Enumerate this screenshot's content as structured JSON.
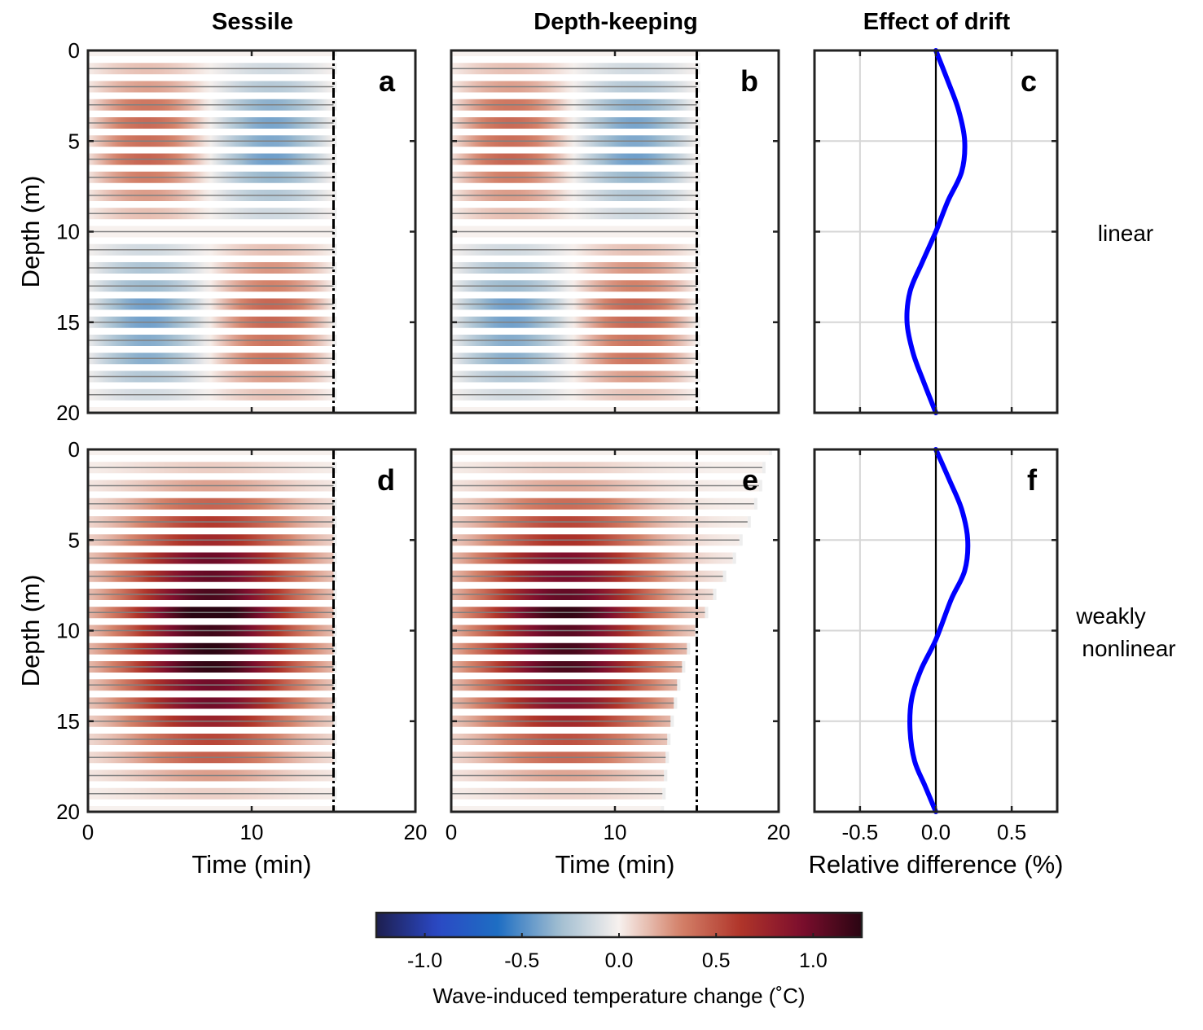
{
  "column_titles": [
    "Sessile",
    "Depth-keeping",
    "Effect of drift"
  ],
  "row_labels": {
    "top": "linear",
    "bottom": [
      "weakly",
      "nonlinear"
    ]
  },
  "colors": {
    "diff_curve": "#0000ff",
    "mooring_line": "#808080",
    "cmap_stops": [
      "#1d1f4f",
      "#2b48c4",
      "#1e6ec3",
      "#9fbcd0",
      "#f7f1ee",
      "#d4826a",
      "#b0352a",
      "#7d0e2d",
      "#2a0512"
    ]
  },
  "colorbar": {
    "label": "Wave-induced temperature change (˚C)",
    "range": [
      -1.25,
      1.25
    ],
    "ticks": [
      -1.0,
      -0.5,
      0.0,
      0.5,
      1.0
    ],
    "tick_labels": [
      "-1.0",
      "-0.5",
      "0.0",
      "0.5",
      "1.0"
    ]
  },
  "chart_data": [
    {
      "panel": "a",
      "type": "heatmap",
      "title": "Sessile",
      "xlabel": "",
      "ylabel": "Depth (m)",
      "xlim": [
        0,
        20
      ],
      "ylim": [
        20,
        0
      ],
      "xticks": [
        0,
        10,
        20
      ],
      "yticks": [
        0,
        5,
        10,
        15,
        20
      ],
      "sensor_depths": [
        1,
        2,
        3,
        4,
        5,
        6,
        7,
        8,
        9,
        10,
        11,
        12,
        13,
        14,
        15,
        16,
        17,
        18,
        19,
        20
      ],
      "record_end_min": 15,
      "dashed_vline_min": 15,
      "amplitude_peak_C": 0.45,
      "field": "positive anomaly ~0–7 min, negative ~8–15 min, maximal near 10 m depth"
    },
    {
      "panel": "b",
      "type": "heatmap",
      "title": "Depth-keeping",
      "xlabel": "",
      "ylabel": "",
      "xlim": [
        0,
        20
      ],
      "ylim": [
        20,
        0
      ],
      "xticks": [
        0,
        10,
        20
      ],
      "yticks": [
        0,
        5,
        10,
        15,
        20
      ],
      "sensor_depths": [
        1,
        2,
        3,
        4,
        5,
        6,
        7,
        8,
        9,
        10,
        11,
        12,
        13,
        14,
        15,
        16,
        17,
        18,
        19,
        20
      ],
      "record_end_min": 15,
      "dashed_vline_min": 15,
      "amplitude_peak_C": 0.45,
      "field": "same structure as panel a"
    },
    {
      "panel": "c",
      "type": "line",
      "title": "Effect of drift",
      "xlabel": "",
      "ylabel": "",
      "xlim": [
        -0.8,
        0.8
      ],
      "ylim": [
        20,
        0
      ],
      "xticks": [
        -0.5,
        0.0,
        0.5
      ],
      "yticks": [
        0,
        5,
        10,
        15,
        20
      ],
      "grid": true,
      "series": [
        {
          "x": [
            0.0,
            0.08,
            0.15,
            0.19,
            0.17,
            0.08,
            0.0,
            -0.09,
            -0.17,
            -0.19,
            -0.15,
            -0.08,
            0.0
          ],
          "y": [
            0,
            1.7,
            3.3,
            5.0,
            6.7,
            8.3,
            10.0,
            11.7,
            13.3,
            15.0,
            16.7,
            18.3,
            20.0
          ]
        }
      ]
    },
    {
      "panel": "d",
      "type": "heatmap",
      "title": "",
      "xlabel": "Time (min)",
      "ylabel": "Depth (m)",
      "xlim": [
        0,
        20
      ],
      "ylim": [
        20,
        0
      ],
      "xticks": [
        0,
        10,
        20
      ],
      "yticks": [
        0,
        5,
        10,
        15,
        20
      ],
      "sensor_depths": [
        1,
        2,
        3,
        4,
        5,
        6,
        7,
        8,
        9,
        10,
        11,
        12,
        13,
        14,
        15,
        16,
        17,
        18,
        19,
        20
      ],
      "record_end_min": 15,
      "dashed_vline_min": 15,
      "amplitude_peak_C": 1.25,
      "field": "positive anomaly throughout record, peak ~7.5 min at ~10 m depth"
    },
    {
      "panel": "e",
      "type": "heatmap",
      "title": "",
      "xlabel": "Time (min)",
      "ylabel": "",
      "xlim": [
        0,
        20
      ],
      "ylim": [
        20,
        0
      ],
      "xticks": [
        0,
        10,
        20
      ],
      "yticks": [
        0,
        5,
        10,
        15,
        20
      ],
      "sensor_depths": [
        1,
        2,
        3,
        4,
        5,
        6,
        7,
        8,
        9,
        10,
        11,
        12,
        13,
        14,
        15,
        16,
        17,
        18,
        19,
        20
      ],
      "record_end_min": [
        19.0,
        18.8,
        18.5,
        18.1,
        17.6,
        17.2,
        16.6,
        16.0,
        15.5,
        14.9,
        14.4,
        14.1,
        13.8,
        13.6,
        13.4,
        13.2,
        13.1,
        13.0,
        12.9,
        12.8
      ],
      "dashed_vline_min": 15,
      "amplitude_peak_C": 1.15,
      "field": "positive anomaly, peak ~7 min at ~10 m depth"
    },
    {
      "panel": "f",
      "type": "line",
      "title": "",
      "xlabel": "Relative difference (%)",
      "ylabel": "",
      "xlim": [
        -0.8,
        0.8
      ],
      "ylim": [
        20,
        0
      ],
      "xticks": [
        -0.5,
        0.0,
        0.5
      ],
      "xtick_labels": [
        "-0.5",
        "0.0",
        "0.5"
      ],
      "yticks": [
        0,
        5,
        10,
        15,
        20
      ],
      "grid": true,
      "series": [
        {
          "x": [
            0.0,
            0.09,
            0.17,
            0.21,
            0.19,
            0.1,
            0.0,
            -0.1,
            -0.16,
            -0.17,
            -0.14,
            -0.07,
            0.0
          ],
          "y": [
            0,
            1.7,
            3.3,
            5.0,
            6.7,
            8.3,
            10.5,
            12.2,
            13.8,
            15.5,
            17.2,
            18.6,
            20.0
          ]
        }
      ]
    }
  ]
}
